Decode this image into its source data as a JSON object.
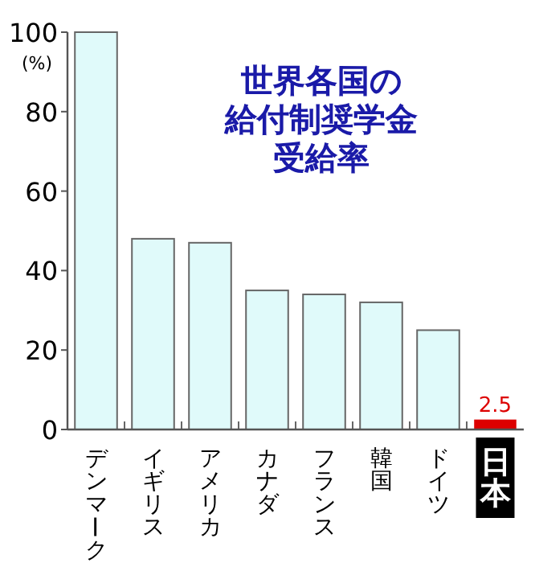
{
  "chart_data": {
    "type": "bar",
    "title": "世界各国の",
    "subtitle": "給付制奨学金受給率",
    "ylabel": "(%)",
    "categories": [
      "デンマーク",
      "イギリス",
      "アメリカ",
      "カナダ",
      "フランス",
      "韓国",
      "ドイツ",
      "日本"
    ],
    "values": [
      100,
      48,
      47,
      35,
      34,
      32,
      25,
      2.5
    ],
    "colors": [
      "#e0fafa",
      "#e0fafa",
      "#e0fafa",
      "#e0fafa",
      "#e0fafa",
      "#e0fafa",
      "#e0fafa",
      "#dd0000"
    ],
    "value_labels": [
      null,
      null,
      null,
      null,
      null,
      null,
      null,
      "2.5"
    ],
    "ylim": [
      0,
      100
    ],
    "yticks": [
      0,
      20,
      40,
      60,
      80,
      100
    ]
  }
}
